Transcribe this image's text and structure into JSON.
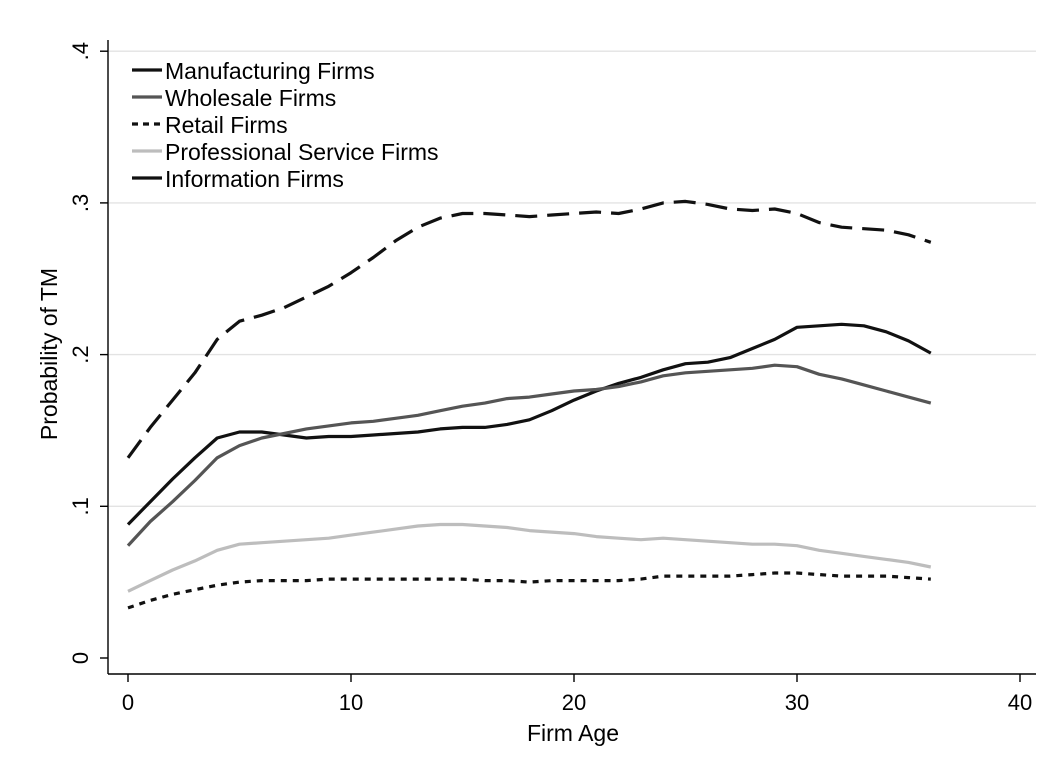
{
  "chart_data": {
    "type": "line",
    "title": "",
    "xlabel": "Firm Age",
    "ylabel": "Probability of TM",
    "xlim": [
      0,
      40
    ],
    "ylim": [
      0,
      0.4
    ],
    "x_ticks": [
      "0",
      "10",
      "20",
      "30",
      "40"
    ],
    "y_ticks": [
      "0",
      ".1",
      ".2",
      ".3",
      ".4"
    ],
    "grid": "horizontal",
    "legend_position": "top-left",
    "series": [
      {
        "name": "Manufacturing Firms",
        "color": "#111111",
        "style": "solid",
        "x": [
          0,
          1,
          2,
          3,
          4,
          5,
          6,
          7,
          8,
          9,
          10,
          11,
          12,
          13,
          14,
          15,
          16,
          17,
          18,
          19,
          20,
          21,
          22,
          23,
          24,
          25,
          26,
          27,
          28,
          29,
          30,
          31,
          32,
          33,
          34,
          35,
          36
        ],
        "y": [
          0.088,
          0.103,
          0.118,
          0.132,
          0.145,
          0.149,
          0.149,
          0.147,
          0.145,
          0.146,
          0.146,
          0.147,
          0.148,
          0.149,
          0.151,
          0.152,
          0.152,
          0.154,
          0.157,
          0.163,
          0.17,
          0.176,
          0.181,
          0.185,
          0.19,
          0.194,
          0.195,
          0.198,
          0.204,
          0.21,
          0.218,
          0.219,
          0.22,
          0.219,
          0.215,
          0.209,
          0.201
        ]
      },
      {
        "name": "Wholesale Firms",
        "color": "#555555",
        "style": "solid",
        "x": [
          0,
          1,
          2,
          3,
          4,
          5,
          6,
          7,
          8,
          9,
          10,
          11,
          12,
          13,
          14,
          15,
          16,
          17,
          18,
          19,
          20,
          21,
          22,
          23,
          24,
          25,
          26,
          27,
          28,
          29,
          30,
          31,
          32,
          33,
          34,
          35,
          36
        ],
        "y": [
          0.074,
          0.09,
          0.103,
          0.117,
          0.132,
          0.14,
          0.145,
          0.148,
          0.151,
          0.153,
          0.155,
          0.156,
          0.158,
          0.16,
          0.163,
          0.166,
          0.168,
          0.171,
          0.172,
          0.174,
          0.176,
          0.177,
          0.179,
          0.182,
          0.186,
          0.188,
          0.189,
          0.19,
          0.191,
          0.193,
          0.192,
          0.187,
          0.184,
          0.18,
          0.176,
          0.172,
          0.168
        ]
      },
      {
        "name": "Retail Firms",
        "color": "#111111",
        "style": "dotted",
        "x": [
          0,
          1,
          2,
          3,
          4,
          5,
          6,
          7,
          8,
          9,
          10,
          11,
          12,
          13,
          14,
          15,
          16,
          17,
          18,
          19,
          20,
          21,
          22,
          23,
          24,
          25,
          26,
          27,
          28,
          29,
          30,
          31,
          32,
          33,
          34,
          35,
          36
        ],
        "y": [
          0.033,
          0.038,
          0.042,
          0.045,
          0.048,
          0.05,
          0.051,
          0.051,
          0.051,
          0.052,
          0.052,
          0.052,
          0.052,
          0.052,
          0.052,
          0.052,
          0.051,
          0.051,
          0.05,
          0.051,
          0.051,
          0.051,
          0.051,
          0.052,
          0.054,
          0.054,
          0.054,
          0.054,
          0.055,
          0.056,
          0.056,
          0.055,
          0.054,
          0.054,
          0.054,
          0.053,
          0.052
        ]
      },
      {
        "name": "Professional Service Firms",
        "color": "#bdbdbd",
        "style": "solid",
        "x": [
          0,
          1,
          2,
          3,
          4,
          5,
          6,
          7,
          8,
          9,
          10,
          11,
          12,
          13,
          14,
          15,
          16,
          17,
          18,
          19,
          20,
          21,
          22,
          23,
          24,
          25,
          26,
          27,
          28,
          29,
          30,
          31,
          32,
          33,
          34,
          35,
          36
        ],
        "y": [
          0.044,
          0.051,
          0.058,
          0.064,
          0.071,
          0.075,
          0.076,
          0.077,
          0.078,
          0.079,
          0.081,
          0.083,
          0.085,
          0.087,
          0.088,
          0.088,
          0.087,
          0.086,
          0.084,
          0.083,
          0.082,
          0.08,
          0.079,
          0.078,
          0.079,
          0.078,
          0.077,
          0.076,
          0.075,
          0.075,
          0.074,
          0.071,
          0.069,
          0.067,
          0.065,
          0.063,
          0.06
        ]
      },
      {
        "name": "Information Firms",
        "color": "#111111",
        "style": "dashed",
        "x": [
          0,
          1,
          2,
          3,
          4,
          5,
          6,
          7,
          8,
          9,
          10,
          11,
          12,
          13,
          14,
          15,
          16,
          17,
          18,
          19,
          20,
          21,
          22,
          23,
          24,
          25,
          26,
          27,
          28,
          29,
          30,
          31,
          32,
          33,
          34,
          35,
          36
        ],
        "y": [
          0.132,
          0.152,
          0.17,
          0.188,
          0.21,
          0.222,
          0.226,
          0.231,
          0.238,
          0.245,
          0.254,
          0.264,
          0.275,
          0.284,
          0.29,
          0.293,
          0.293,
          0.292,
          0.291,
          0.292,
          0.293,
          0.294,
          0.293,
          0.296,
          0.3,
          0.301,
          0.299,
          0.296,
          0.295,
          0.296,
          0.293,
          0.287,
          0.284,
          0.283,
          0.282,
          0.279,
          0.274
        ]
      }
    ]
  }
}
